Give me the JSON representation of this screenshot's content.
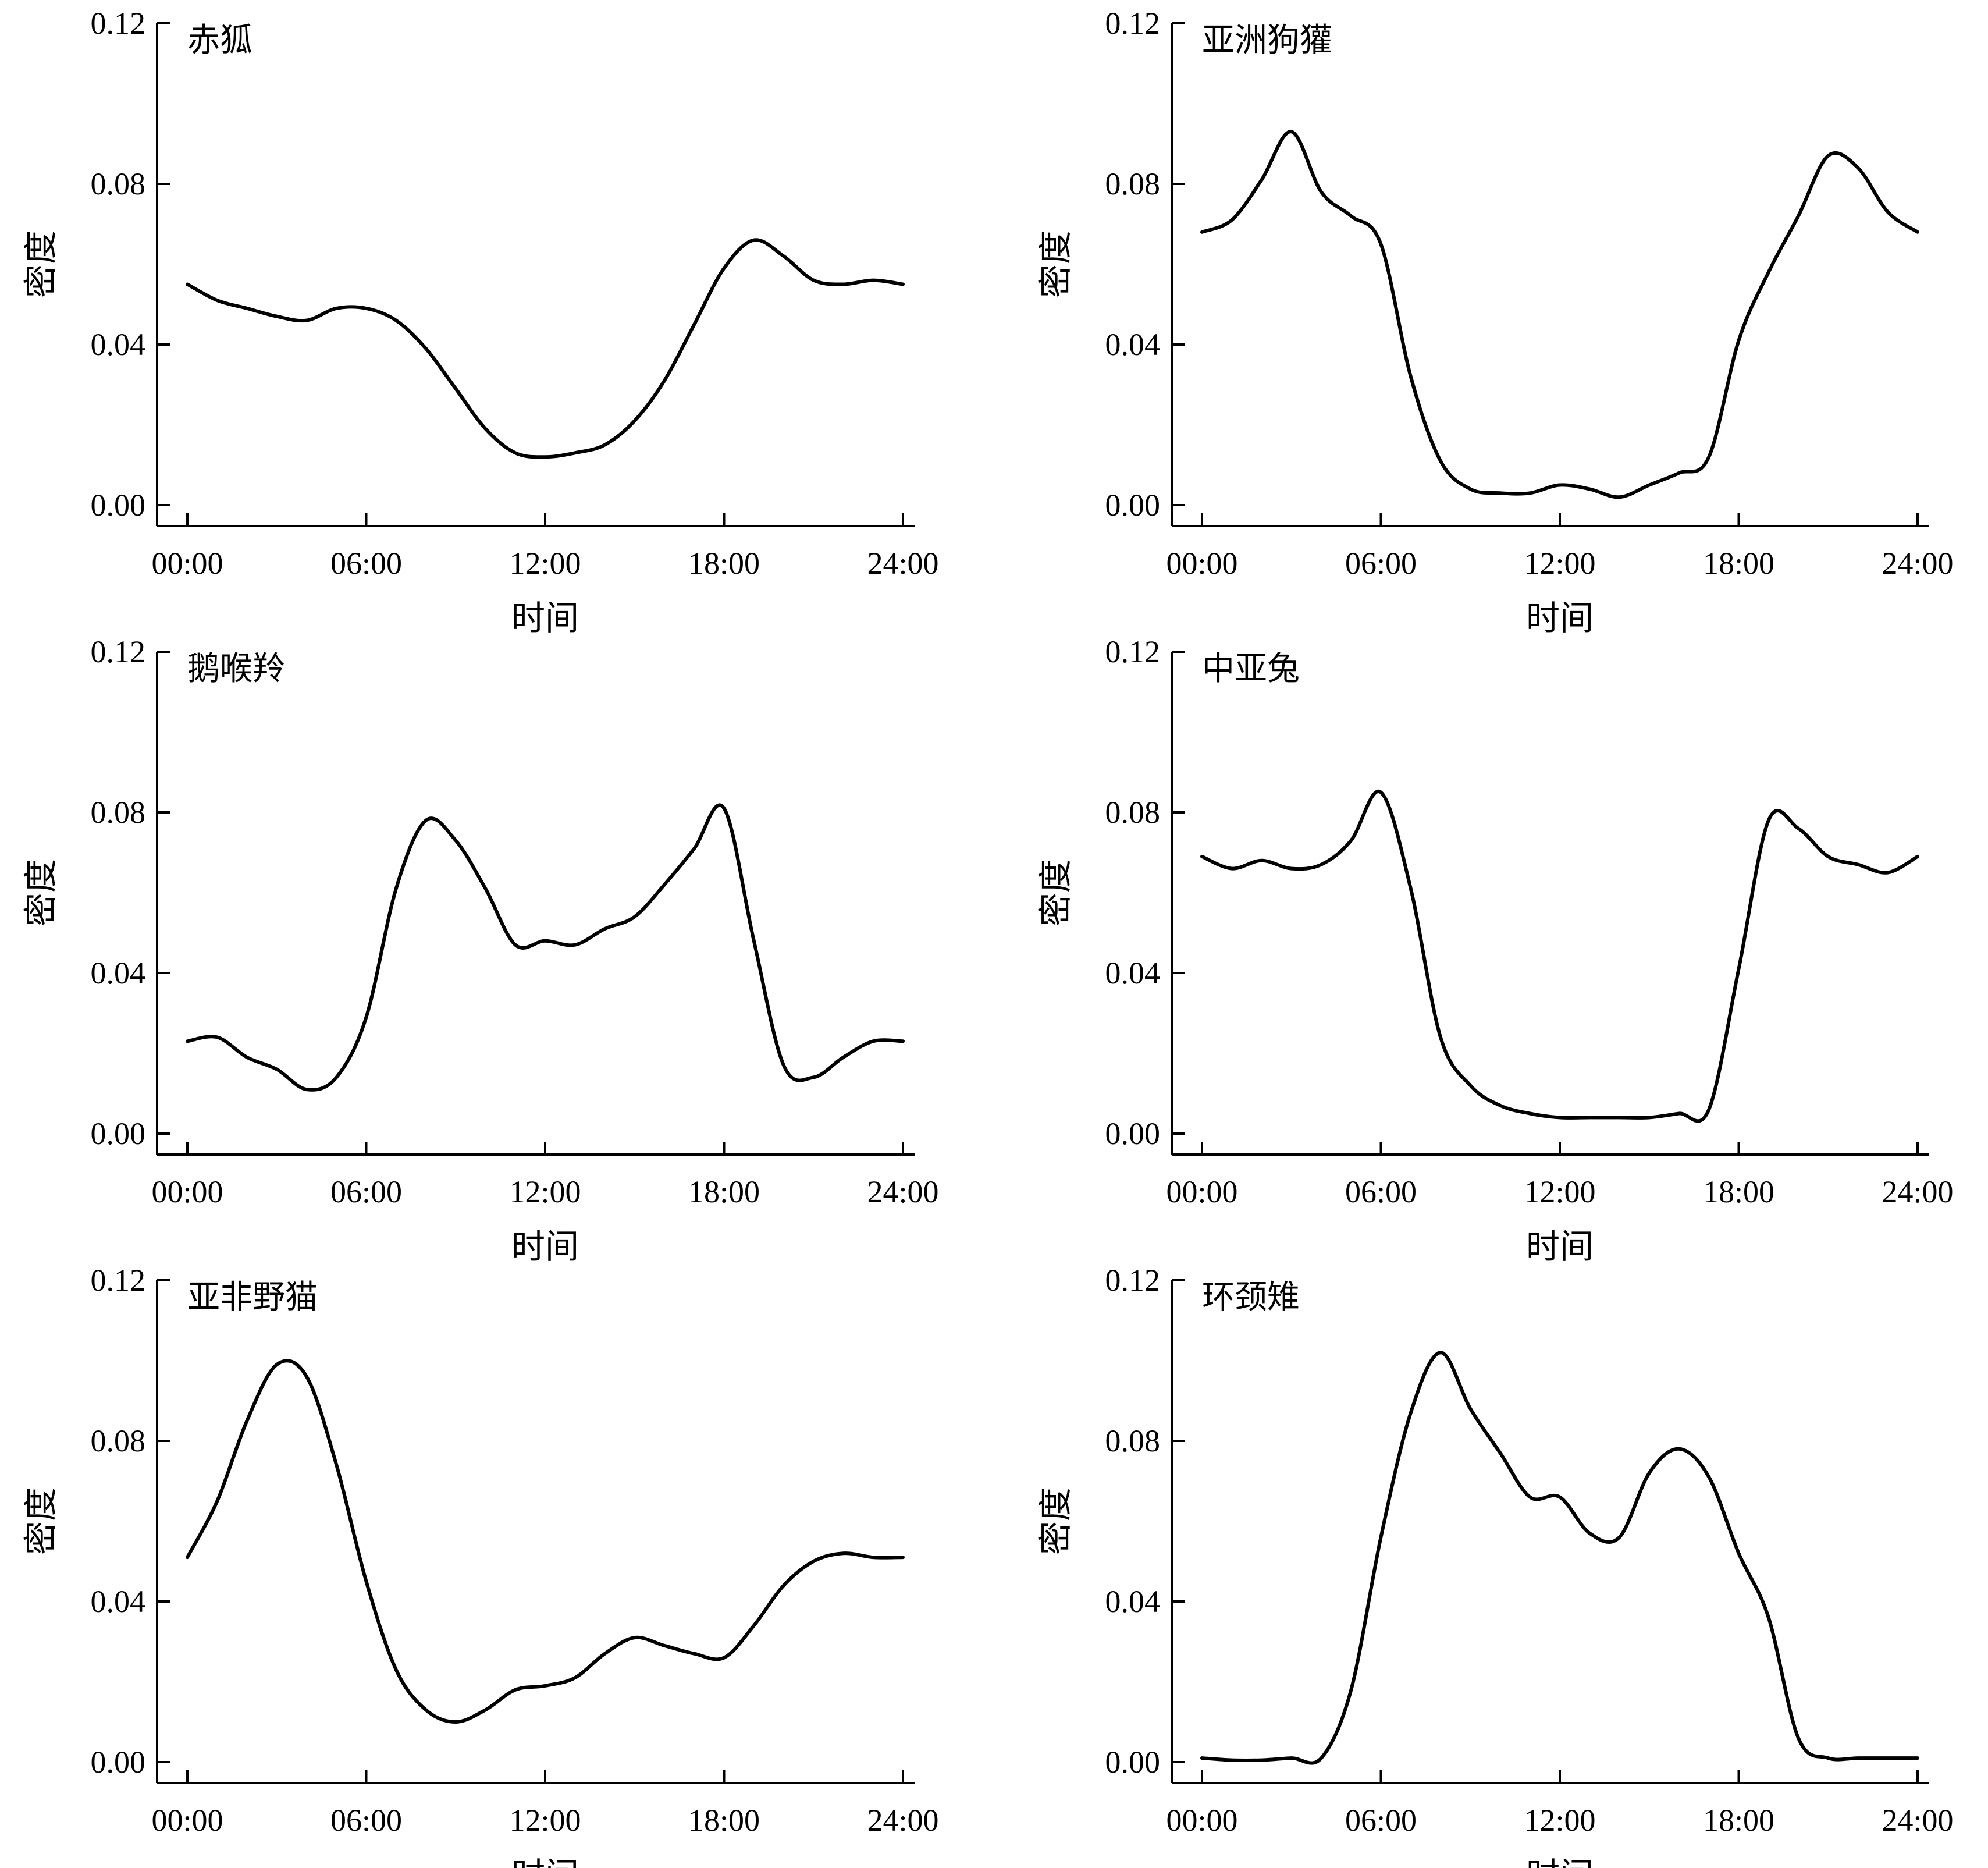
{
  "chart_data": [
    {
      "type": "line",
      "title": "赤狐",
      "xlabel": "时间",
      "ylabel": "密度",
      "xlim": [
        0,
        24
      ],
      "ylim": [
        0,
        0.12
      ],
      "xticks": [
        "00:00",
        "06:00",
        "12:00",
        "18:00",
        "24:00"
      ],
      "yticks": [
        "0.00",
        "0.04",
        "0.08",
        "0.12"
      ],
      "grid": false,
      "x": [
        0,
        1,
        2,
        3,
        4,
        5,
        6,
        7,
        8,
        9,
        10,
        11,
        12,
        13,
        14,
        15,
        16,
        17,
        18,
        19,
        20,
        21,
        22,
        23,
        24
      ],
      "series": [
        {
          "values": [
            0.055,
            0.051,
            0.049,
            0.047,
            0.046,
            0.049,
            0.049,
            0.046,
            0.039,
            0.029,
            0.019,
            0.013,
            0.012,
            0.013,
            0.015,
            0.021,
            0.031,
            0.045,
            0.059,
            0.066,
            0.062,
            0.056,
            0.055,
            0.056,
            0.055
          ]
        }
      ]
    },
    {
      "type": "line",
      "title": "亚洲狗獾",
      "xlabel": "时间",
      "ylabel": "密度",
      "xlim": [
        0,
        24
      ],
      "ylim": [
        0,
        0.12
      ],
      "xticks": [
        "00:00",
        "06:00",
        "12:00",
        "18:00",
        "24:00"
      ],
      "yticks": [
        "0.00",
        "0.04",
        "0.08",
        "0.12"
      ],
      "grid": false,
      "x": [
        0,
        1,
        2,
        3,
        4,
        5,
        6,
        7,
        8,
        9,
        10,
        11,
        12,
        13,
        14,
        15,
        16,
        17,
        18,
        19,
        20,
        21,
        22,
        23,
        24
      ],
      "series": [
        {
          "values": [
            0.068,
            0.071,
            0.081,
            0.093,
            0.078,
            0.072,
            0.065,
            0.032,
            0.011,
            0.004,
            0.003,
            0.003,
            0.005,
            0.004,
            0.002,
            0.005,
            0.008,
            0.012,
            0.041,
            0.058,
            0.072,
            0.087,
            0.084,
            0.073,
            0.068
          ]
        }
      ]
    },
    {
      "type": "line",
      "title": "鹅喉羚",
      "xlabel": "时间",
      "ylabel": "密度",
      "xlim": [
        0,
        24
      ],
      "ylim": [
        0,
        0.12
      ],
      "xticks": [
        "00:00",
        "06:00",
        "12:00",
        "18:00",
        "24:00"
      ],
      "yticks": [
        "0.00",
        "0.04",
        "0.08",
        "0.12"
      ],
      "grid": false,
      "x": [
        0,
        1,
        2,
        3,
        4,
        5,
        6,
        7,
        8,
        9,
        10,
        11,
        12,
        13,
        14,
        15,
        16,
        17,
        18,
        19,
        20,
        21,
        22,
        23,
        24
      ],
      "series": [
        {
          "values": [
            0.023,
            0.024,
            0.019,
            0.016,
            0.011,
            0.014,
            0.029,
            0.061,
            0.078,
            0.073,
            0.061,
            0.047,
            0.048,
            0.047,
            0.051,
            0.054,
            0.062,
            0.071,
            0.081,
            0.048,
            0.017,
            0.014,
            0.019,
            0.023,
            0.023
          ]
        }
      ]
    },
    {
      "type": "line",
      "title": "中亚兔",
      "xlabel": "时间",
      "ylabel": "密度",
      "xlim": [
        0,
        24
      ],
      "ylim": [
        0,
        0.12
      ],
      "xticks": [
        "00:00",
        "06:00",
        "12:00",
        "18:00",
        "24:00"
      ],
      "yticks": [
        "0.00",
        "0.04",
        "0.08",
        "0.12"
      ],
      "grid": false,
      "x": [
        0,
        1,
        2,
        3,
        4,
        5,
        6,
        7,
        8,
        9,
        10,
        11,
        12,
        13,
        14,
        15,
        16,
        17,
        18,
        19,
        20,
        21,
        22,
        23,
        24
      ],
      "series": [
        {
          "values": [
            0.069,
            0.066,
            0.068,
            0.066,
            0.067,
            0.073,
            0.085,
            0.061,
            0.024,
            0.012,
            0.007,
            0.005,
            0.004,
            0.004,
            0.004,
            0.004,
            0.005,
            0.006,
            0.041,
            0.078,
            0.076,
            0.069,
            0.067,
            0.065,
            0.069
          ]
        }
      ]
    },
    {
      "type": "line",
      "title": "亚非野猫",
      "xlabel": "时间",
      "ylabel": "密度",
      "xlim": [
        0,
        24
      ],
      "ylim": [
        0,
        0.12
      ],
      "xticks": [
        "00:00",
        "06:00",
        "12:00",
        "18:00",
        "24:00"
      ],
      "yticks": [
        "0.00",
        "0.04",
        "0.08",
        "0.12"
      ],
      "grid": false,
      "x": [
        0,
        1,
        2,
        3,
        4,
        5,
        6,
        7,
        8,
        9,
        10,
        11,
        12,
        13,
        14,
        15,
        16,
        17,
        18,
        19,
        20,
        21,
        22,
        23,
        24
      ],
      "series": [
        {
          "values": [
            0.051,
            0.065,
            0.085,
            0.099,
            0.096,
            0.074,
            0.045,
            0.023,
            0.013,
            0.01,
            0.013,
            0.018,
            0.019,
            0.021,
            0.027,
            0.031,
            0.029,
            0.027,
            0.026,
            0.034,
            0.044,
            0.05,
            0.052,
            0.051,
            0.051
          ]
        }
      ]
    },
    {
      "type": "line",
      "title": "环颈雉",
      "xlabel": "时间",
      "ylabel": "密度",
      "xlim": [
        0,
        24
      ],
      "ylim": [
        0,
        0.12
      ],
      "xticks": [
        "00:00",
        "06:00",
        "12:00",
        "18:00",
        "24:00"
      ],
      "yticks": [
        "0.00",
        "0.04",
        "0.08",
        "0.12"
      ],
      "grid": false,
      "x": [
        0,
        1,
        2,
        3,
        4,
        5,
        6,
        7,
        8,
        9,
        10,
        11,
        12,
        13,
        14,
        15,
        16,
        17,
        18,
        19,
        20,
        21,
        22,
        23,
        24
      ],
      "series": [
        {
          "values": [
            0.001,
            0.0005,
            0.0005,
            0.001,
            0.001,
            0.018,
            0.056,
            0.087,
            0.102,
            0.088,
            0.077,
            0.066,
            0.066,
            0.057,
            0.056,
            0.072,
            0.078,
            0.071,
            0.052,
            0.036,
            0.006,
            0.001,
            0.001,
            0.001,
            0.001
          ]
        }
      ]
    }
  ]
}
